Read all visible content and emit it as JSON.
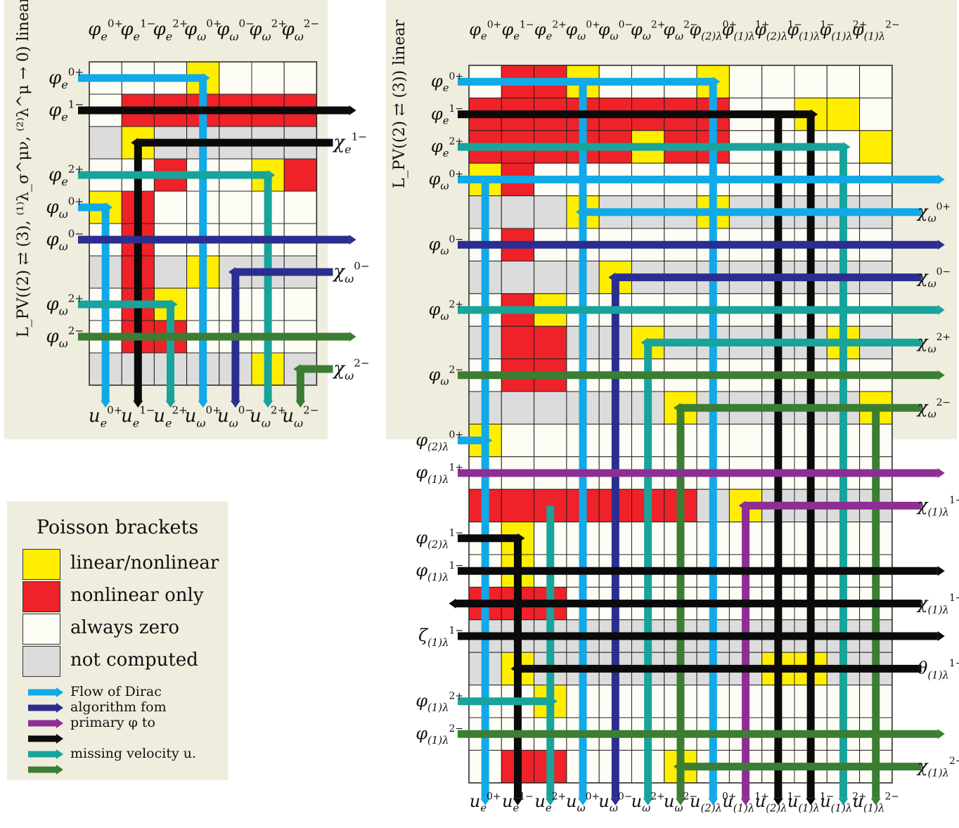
{
  "colors": {
    "linear": "#ffee00",
    "nonlinear": "#ee2228",
    "zero": "#fdfdf6",
    "notcomputed": "#dcdcdc",
    "blue": "#11a9e8",
    "indigo": "#2b2e8e",
    "purple": "#8e2e94",
    "black": "#0a0a0a",
    "teal": "#18a39b",
    "green": "#3b7d32",
    "panel": "#efedde"
  },
  "left_panel": {
    "side_title": "L_PV((2) ⇄ (3), ⁽¹⁾λ_σ^μν, ⁽²⁾λ^μ → 0) linear",
    "columns": [
      "φe0+",
      "φe1−",
      "φe2+",
      "φω0+",
      "φω0−",
      "φω2+",
      "φω2−"
    ],
    "bottom_labels": [
      "ue0+",
      "ue1−",
      "ue2+",
      "uω0+",
      "uω0−",
      "uω2+",
      "uω2−"
    ],
    "row_labels": [
      {
        "text": "φe0+",
        "row": 0,
        "side": "left"
      },
      {
        "text": "φe1−",
        "row": 1,
        "side": "left"
      },
      {
        "text": "χe1−",
        "row": 2,
        "side": "right"
      },
      {
        "text": "φe2+",
        "row": 3,
        "side": "left"
      },
      {
        "text": "φω0+",
        "row": 4,
        "side": "left"
      },
      {
        "text": "φω0−",
        "row": 5,
        "side": "left"
      },
      {
        "text": "χω0−",
        "row": 6,
        "side": "right"
      },
      {
        "text": "φω2+",
        "row": 7,
        "side": "left"
      },
      {
        "text": "φω2−",
        "row": 8,
        "side": "left"
      },
      {
        "text": "χω2−",
        "row": 9,
        "side": "right"
      }
    ],
    "grid": [
      "000L000",
      "0NNNNNN",
      "GLGGGGG",
      "00N00LN",
      "LN00000",
      "0N00000",
      "GNGLGGG",
      "0NL0000",
      "0NN0000",
      "GGGGGLG"
    ]
  },
  "right_panel": {
    "side_title": "L_PV((2) ⇄ (3)) linear",
    "columns": [
      "φe0+",
      "φe1−",
      "φe2+",
      "φω0+",
      "φω0−",
      "φω2+",
      "φω2−",
      "φ(2)λ0+",
      "φ(1)λ1+",
      "φ(2)λ1−",
      "φ(1)λ1−",
      "φ(1)λ2+",
      "φ(1)λ2−"
    ],
    "bottom_labels": [
      "ue0+",
      "ue1−",
      "ue2+",
      "uω0+",
      "uω0−",
      "uω2+",
      "uω2−",
      "u(2)λ0+",
      "u(1)λ1+",
      "u(2)λ1−",
      "u(1)λ1−",
      "u(1)λ2+",
      "u(1)λ2−"
    ],
    "row_labels": [
      {
        "text": "φe0+",
        "row": 0,
        "side": "left"
      },
      {
        "text": "φe1−",
        "row": 1,
        "side": "left"
      },
      {
        "text": "φe2+",
        "row": 2,
        "side": "left"
      },
      {
        "text": "φω0+",
        "row": 3,
        "side": "left"
      },
      {
        "text": "χω0+",
        "row": 4,
        "side": "right"
      },
      {
        "text": "φω0−",
        "row": 5,
        "side": "left"
      },
      {
        "text": "χω0−",
        "row": 6,
        "side": "right"
      },
      {
        "text": "φω2+",
        "row": 7,
        "side": "left"
      },
      {
        "text": "χω2+",
        "row": 8,
        "side": "right"
      },
      {
        "text": "φω2−",
        "row": 9,
        "side": "left"
      },
      {
        "text": "χω2−",
        "row": 10,
        "side": "right"
      },
      {
        "text": "φ(2)λ0+",
        "row": 11,
        "side": "left"
      },
      {
        "text": "φ(1)λ1+",
        "row": 12,
        "side": "left"
      },
      {
        "text": "χ(1)λ1+",
        "row": 13,
        "side": "right"
      },
      {
        "text": "φ(2)λ1−",
        "row": 14,
        "side": "left"
      },
      {
        "text": "φ(1)λ1−",
        "row": 15,
        "side": "left"
      },
      {
        "text": "χ(1)λ1−",
        "row": 16,
        "side": "right"
      },
      {
        "text": "ζ(1)λ1−",
        "row": 17,
        "side": "left"
      },
      {
        "text": "θ(1)λ1−",
        "row": 18,
        "side": "right"
      },
      {
        "text": "φ(1)λ2+",
        "row": 19,
        "side": "left"
      },
      {
        "text": "φ(1)λ2−",
        "row": 20,
        "side": "left"
      },
      {
        "text": "χ(1)λ2−",
        "row": 21,
        "side": "right"
      }
    ],
    "grid": [
      "0NNL000L00000",
      "NNNNNNNN00LL0",
      "NNNNNLNN0000L",
      "LN00000000000",
      "GGGLGGGLGGGGG",
      "0N00000000000",
      "GGGGLGGGGGGGG",
      "0NL0000000000",
      "GNNGGLGGGGGLG",
      "0NN0000000000",
      "GGGGGGLGGGGGL",
      "L000000000000",
      "0000000000000",
      "NNNNNNNGLGGGG",
      "0L00000000000",
      "0L00000000000",
      "NNN0000000000",
      "GGGGGGGGGGGGG",
      "GLGGGGGGGLLGG",
      "00L0000000000",
      "0000000000000",
      "0NN000L000000"
    ]
  },
  "legend": {
    "title": "Poisson brackets",
    "items": [
      {
        "label": "linear/nonlinear",
        "color_key": "linear"
      },
      {
        "label": "nonlinear only",
        "color_key": "nonlinear"
      },
      {
        "label": "always zero",
        "color_key": "zero"
      },
      {
        "label": "not computed",
        "color_key": "notcomputed"
      }
    ],
    "flow_lines": [
      {
        "text": "Flow of Dirac",
        "color_key": "blue"
      },
      {
        "text": "algorithm fom",
        "color_key": "indigo"
      },
      {
        "text": "primary φ to",
        "color_key": "purple"
      },
      {
        "text": "",
        "color_key": "black"
      },
      {
        "text": "missing velocity u.",
        "color_key": "teal"
      },
      {
        "text": "",
        "color_key": "green"
      }
    ]
  }
}
